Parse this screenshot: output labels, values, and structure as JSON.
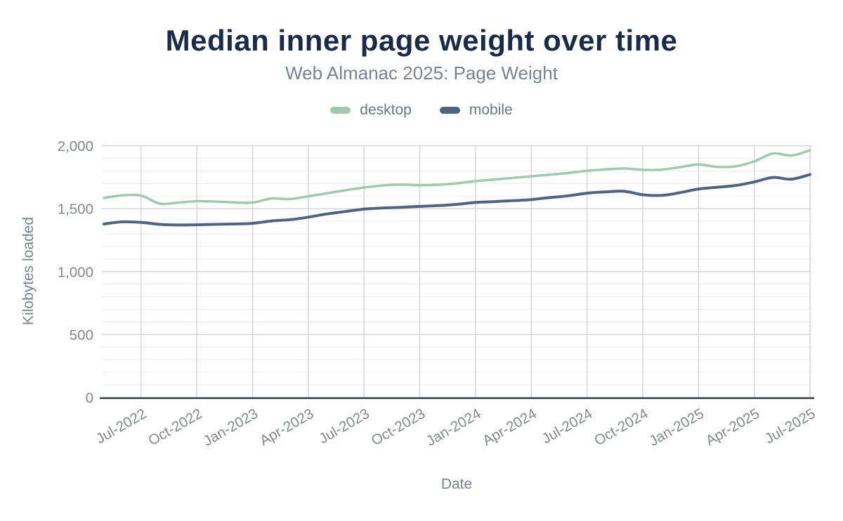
{
  "title": "Median inner page weight over time",
  "subtitle": "Web Almanac 2025: Page Weight",
  "legend": [
    {
      "label": "desktop",
      "color": "#a3c8b2"
    },
    {
      "label": "mobile",
      "color": "#4f647e"
    }
  ],
  "y_axis": {
    "title": "Kilobytes loaded",
    "ticks": [
      "0",
      "500",
      "1,000",
      "1,500",
      "2,000"
    ],
    "tick_values": [
      0,
      500,
      1000,
      1500,
      2000
    ],
    "max": 2000
  },
  "x_axis": {
    "title": "Date",
    "ticks": [
      "Jul-2022",
      "Oct-2022",
      "Jan-2023",
      "Apr-2023",
      "Jul-2023",
      "Oct-2023",
      "Jan-2024",
      "Apr-2024",
      "Jul-2024",
      "Oct-2024",
      "Jan-2025",
      "Apr-2025",
      "Jul-2025"
    ],
    "first_tick_index": 2,
    "tick_step": 3
  },
  "colors": {
    "title_text": "#1a2b49",
    "muted_text": "#7b828e",
    "tick_text": "#84888d",
    "grid_major": "#cdd0d4",
    "grid_minor": "#ededee",
    "axis_line": "#35383c"
  },
  "chart_data": {
    "type": "line",
    "title": "Median inner page weight over time",
    "subtitle": "Web Almanac 2025: Page Weight",
    "xlabel": "Date",
    "ylabel": "Kilobytes loaded",
    "ylim": [
      0,
      2000
    ],
    "y_minor_step": 100,
    "y_major_step": 500,
    "grid": "on",
    "legend_position": "top",
    "x": [
      "May-2022",
      "Jun-2022",
      "Jul-2022",
      "Aug-2022",
      "Sep-2022",
      "Oct-2022",
      "Nov-2022",
      "Dec-2022",
      "Jan-2023",
      "Feb-2023",
      "Mar-2023",
      "Apr-2023",
      "May-2023",
      "Jun-2023",
      "Jul-2023",
      "Aug-2023",
      "Sep-2023",
      "Oct-2023",
      "Nov-2023",
      "Dec-2023",
      "Jan-2024",
      "Feb-2024",
      "Mar-2024",
      "Apr-2024",
      "May-2024",
      "Jun-2024",
      "Jul-2024",
      "Aug-2024",
      "Sep-2024",
      "Oct-2024",
      "Nov-2024",
      "Dec-2024",
      "Jan-2025",
      "Feb-2025",
      "Mar-2025",
      "Apr-2025",
      "May-2025",
      "Jun-2025",
      "Jul-2025"
    ],
    "series": [
      {
        "name": "desktop",
        "color": "#a3c8b2",
        "values": [
          1585,
          1605,
          1603,
          1540,
          1548,
          1559,
          1556,
          1550,
          1548,
          1580,
          1576,
          1598,
          1622,
          1646,
          1668,
          1684,
          1691,
          1686,
          1690,
          1701,
          1719,
          1731,
          1744,
          1757,
          1770,
          1783,
          1801,
          1812,
          1819,
          1808,
          1810,
          1829,
          1851,
          1832,
          1836,
          1875,
          1938,
          1922,
          1963
        ]
      },
      {
        "name": "mobile",
        "color": "#4f647e",
        "values": [
          1378,
          1395,
          1391,
          1375,
          1370,
          1372,
          1375,
          1378,
          1383,
          1402,
          1412,
          1432,
          1458,
          1477,
          1496,
          1505,
          1511,
          1518,
          1524,
          1534,
          1549,
          1556,
          1563,
          1572,
          1588,
          1602,
          1623,
          1633,
          1638,
          1610,
          1605,
          1627,
          1656,
          1670,
          1684,
          1712,
          1748,
          1734,
          1771
        ]
      }
    ]
  }
}
